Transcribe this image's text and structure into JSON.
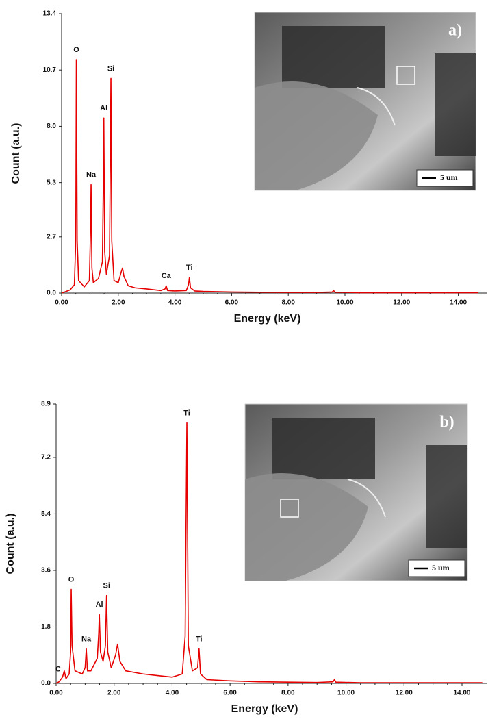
{
  "chart_data": [
    {
      "type": "line",
      "x_label": "Energy (keV)",
      "y_label": "Count (a.u.)",
      "color": "#e60000",
      "xlim": [
        0,
        15.0
      ],
      "ylim": [
        0,
        13.4
      ],
      "xticks": [
        {
          "value": 0,
          "label": "0.00"
        },
        {
          "value": 2,
          "label": "2.00"
        },
        {
          "value": 4,
          "label": "4.00"
        },
        {
          "value": 6,
          "label": "6.00"
        },
        {
          "value": 8,
          "label": "8.00"
        },
        {
          "value": 10,
          "label": "10.00"
        },
        {
          "value": 12,
          "label": "12.00"
        },
        {
          "value": 14,
          "label": "14.00"
        }
      ],
      "yticks": [
        {
          "value": 0,
          "label": "0.0"
        },
        2.7,
        5.3,
        {
          "value": 8,
          "label": "8.0"
        },
        10.7,
        13.4
      ],
      "x": [
        0.1,
        0.3,
        0.45,
        0.5,
        0.52,
        0.55,
        0.6,
        0.8,
        0.98,
        1.02,
        1.04,
        1.07,
        1.12,
        1.3,
        1.44,
        1.47,
        1.49,
        1.52,
        1.58,
        1.69,
        1.72,
        1.74,
        1.77,
        1.85,
        2.0,
        2.1,
        2.15,
        2.2,
        2.35,
        2.6,
        3.0,
        3.5,
        3.65,
        3.69,
        3.74,
        4.0,
        4.4,
        4.48,
        4.51,
        4.55,
        4.7,
        5.0,
        6.0,
        7.0,
        8.0,
        9.0,
        9.55,
        9.6,
        9.65,
        10.5,
        12.0,
        13.0,
        14.0,
        14.7
      ],
      "values": [
        0.05,
        0.15,
        0.4,
        2.5,
        11.2,
        2.5,
        0.6,
        0.3,
        0.6,
        3.0,
        5.2,
        1.2,
        0.5,
        0.7,
        1.5,
        5.0,
        8.4,
        2.0,
        0.9,
        1.8,
        6.5,
        10.3,
        2.5,
        0.6,
        0.5,
        1.0,
        1.2,
        0.8,
        0.35,
        0.25,
        0.2,
        0.12,
        0.2,
        0.35,
        0.12,
        0.1,
        0.12,
        0.4,
        0.75,
        0.25,
        0.1,
        0.08,
        0.05,
        0.04,
        0.03,
        0.03,
        0.05,
        0.12,
        0.04,
        0.02,
        0.02,
        0.02,
        0.02,
        0.02
      ],
      "annotations": [
        {
          "label": "O",
          "x": 0.52,
          "y": 11.2
        },
        {
          "label": "Na",
          "x": 1.04,
          "y": 5.2
        },
        {
          "label": "Al",
          "x": 1.49,
          "y": 8.4
        },
        {
          "label": "Si",
          "x": 1.74,
          "y": 10.3
        },
        {
          "label": "Ca",
          "x": 3.69,
          "y": 0.35
        },
        {
          "label": "Ti",
          "x": 4.51,
          "y": 0.75
        }
      ],
      "inset": {
        "label": "a)",
        "scale_bar": "5 um"
      }
    },
    {
      "type": "line",
      "x_label": "Energy (keV)",
      "y_label": "Count (a.u.)",
      "color": "#e60000",
      "xlim": [
        0,
        14.85
      ],
      "ylim": [
        0,
        8.9
      ],
      "xticks": [
        {
          "value": 0,
          "label": "0.00"
        },
        {
          "value": 2,
          "label": "2.00"
        },
        {
          "value": 4,
          "label": "4.00"
        },
        {
          "value": 6,
          "label": "6.00"
        },
        {
          "value": 8,
          "label": "8.00"
        },
        {
          "value": 10,
          "label": "10.00"
        },
        {
          "value": 12,
          "label": "12.00"
        },
        {
          "value": 14,
          "label": "14.00"
        }
      ],
      "yticks": [
        {
          "value": 0,
          "label": "0.0"
        },
        1.8,
        3.6,
        5.4,
        7.2,
        8.9
      ],
      "x": [
        0.1,
        0.22,
        0.28,
        0.34,
        0.45,
        0.5,
        0.52,
        0.55,
        0.65,
        0.9,
        1.0,
        1.04,
        1.08,
        1.2,
        1.42,
        1.47,
        1.49,
        1.53,
        1.62,
        1.7,
        1.74,
        1.78,
        1.9,
        2.05,
        2.12,
        2.2,
        2.4,
        3.0,
        3.5,
        4.0,
        4.35,
        4.45,
        4.51,
        4.56,
        4.7,
        4.88,
        4.93,
        4.98,
        5.2,
        6.0,
        7.0,
        8.0,
        9.0,
        9.55,
        9.6,
        9.65,
        10.5,
        12.0,
        13.0,
        14.0,
        14.7
      ],
      "values": [
        0.05,
        0.2,
        0.4,
        0.15,
        0.3,
        1.0,
        3.0,
        1.2,
        0.4,
        0.3,
        0.5,
        1.1,
        0.4,
        0.4,
        0.8,
        1.6,
        2.2,
        1.0,
        0.7,
        1.2,
        2.8,
        1.0,
        0.5,
        0.9,
        1.25,
        0.7,
        0.4,
        0.3,
        0.25,
        0.2,
        0.3,
        1.5,
        8.3,
        1.2,
        0.4,
        0.5,
        1.1,
        0.3,
        0.12,
        0.08,
        0.05,
        0.04,
        0.03,
        0.05,
        0.12,
        0.04,
        0.02,
        0.02,
        0.02,
        0.02,
        0.02
      ],
      "annotations": [
        {
          "label": "C",
          "x": 0.28,
          "y": 0.4
        },
        {
          "label": "O",
          "x": 0.52,
          "y": 3.0
        },
        {
          "label": "Na",
          "x": 1.04,
          "y": 1.1
        },
        {
          "label": "Al",
          "x": 1.49,
          "y": 2.2
        },
        {
          "label": "Si",
          "x": 1.74,
          "y": 2.8
        },
        {
          "label": "Ti",
          "x": 4.51,
          "y": 8.3
        },
        {
          "label": "Ti",
          "x": 4.93,
          "y": 1.1
        }
      ],
      "inset": {
        "label": "b)",
        "scale_bar": "5 um"
      }
    }
  ]
}
